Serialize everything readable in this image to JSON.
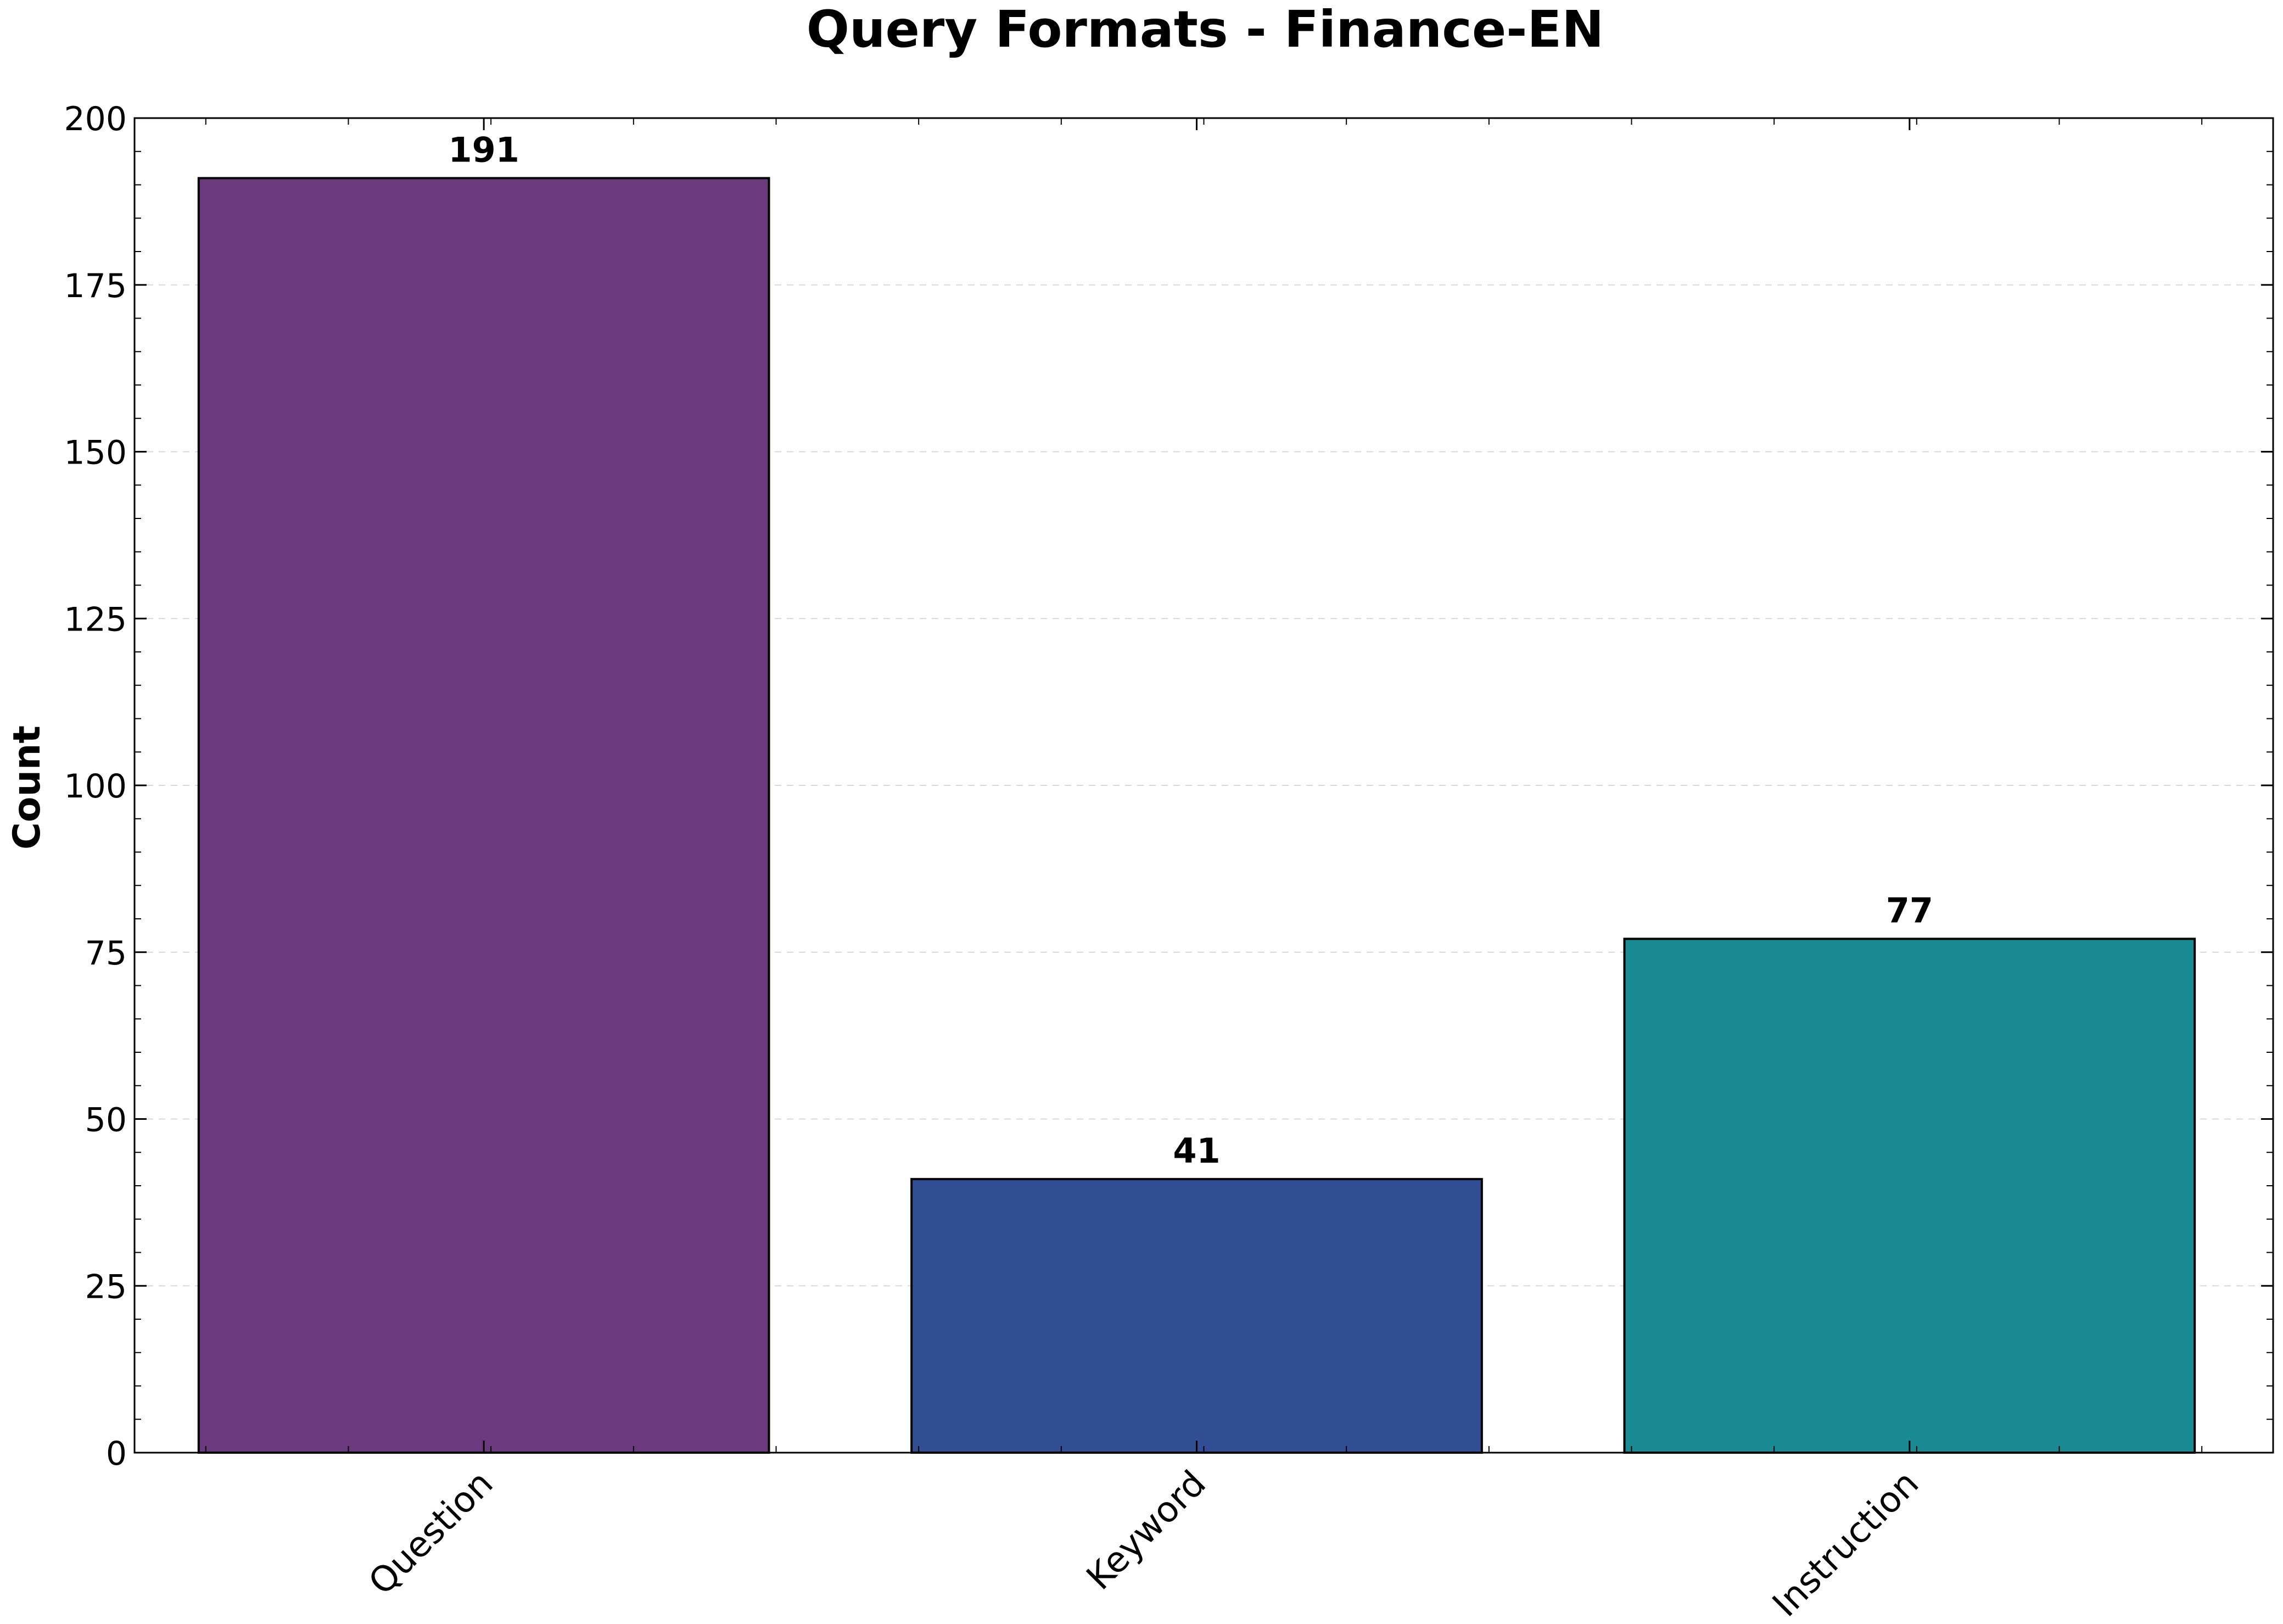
{
  "chart_data": {
    "type": "bar",
    "title": "Query Formats - Finance-EN",
    "xlabel": "",
    "ylabel": "Count",
    "categories": [
      "Question",
      "Keyword",
      "Instruction"
    ],
    "values": [
      191,
      41,
      77
    ],
    "value_labels": [
      "191",
      "41",
      "77"
    ],
    "colors": [
      "#6b3a7e",
      "#324e95",
      "#1a8b93"
    ],
    "ylim": [
      0,
      200
    ],
    "yticks": [
      0,
      25,
      50,
      75,
      100,
      125,
      150,
      175,
      200
    ],
    "ytick_labels": [
      "0",
      "25",
      "50",
      "75",
      "100",
      "125",
      "150",
      "175",
      "200"
    ],
    "grid": true,
    "legend": "none"
  }
}
